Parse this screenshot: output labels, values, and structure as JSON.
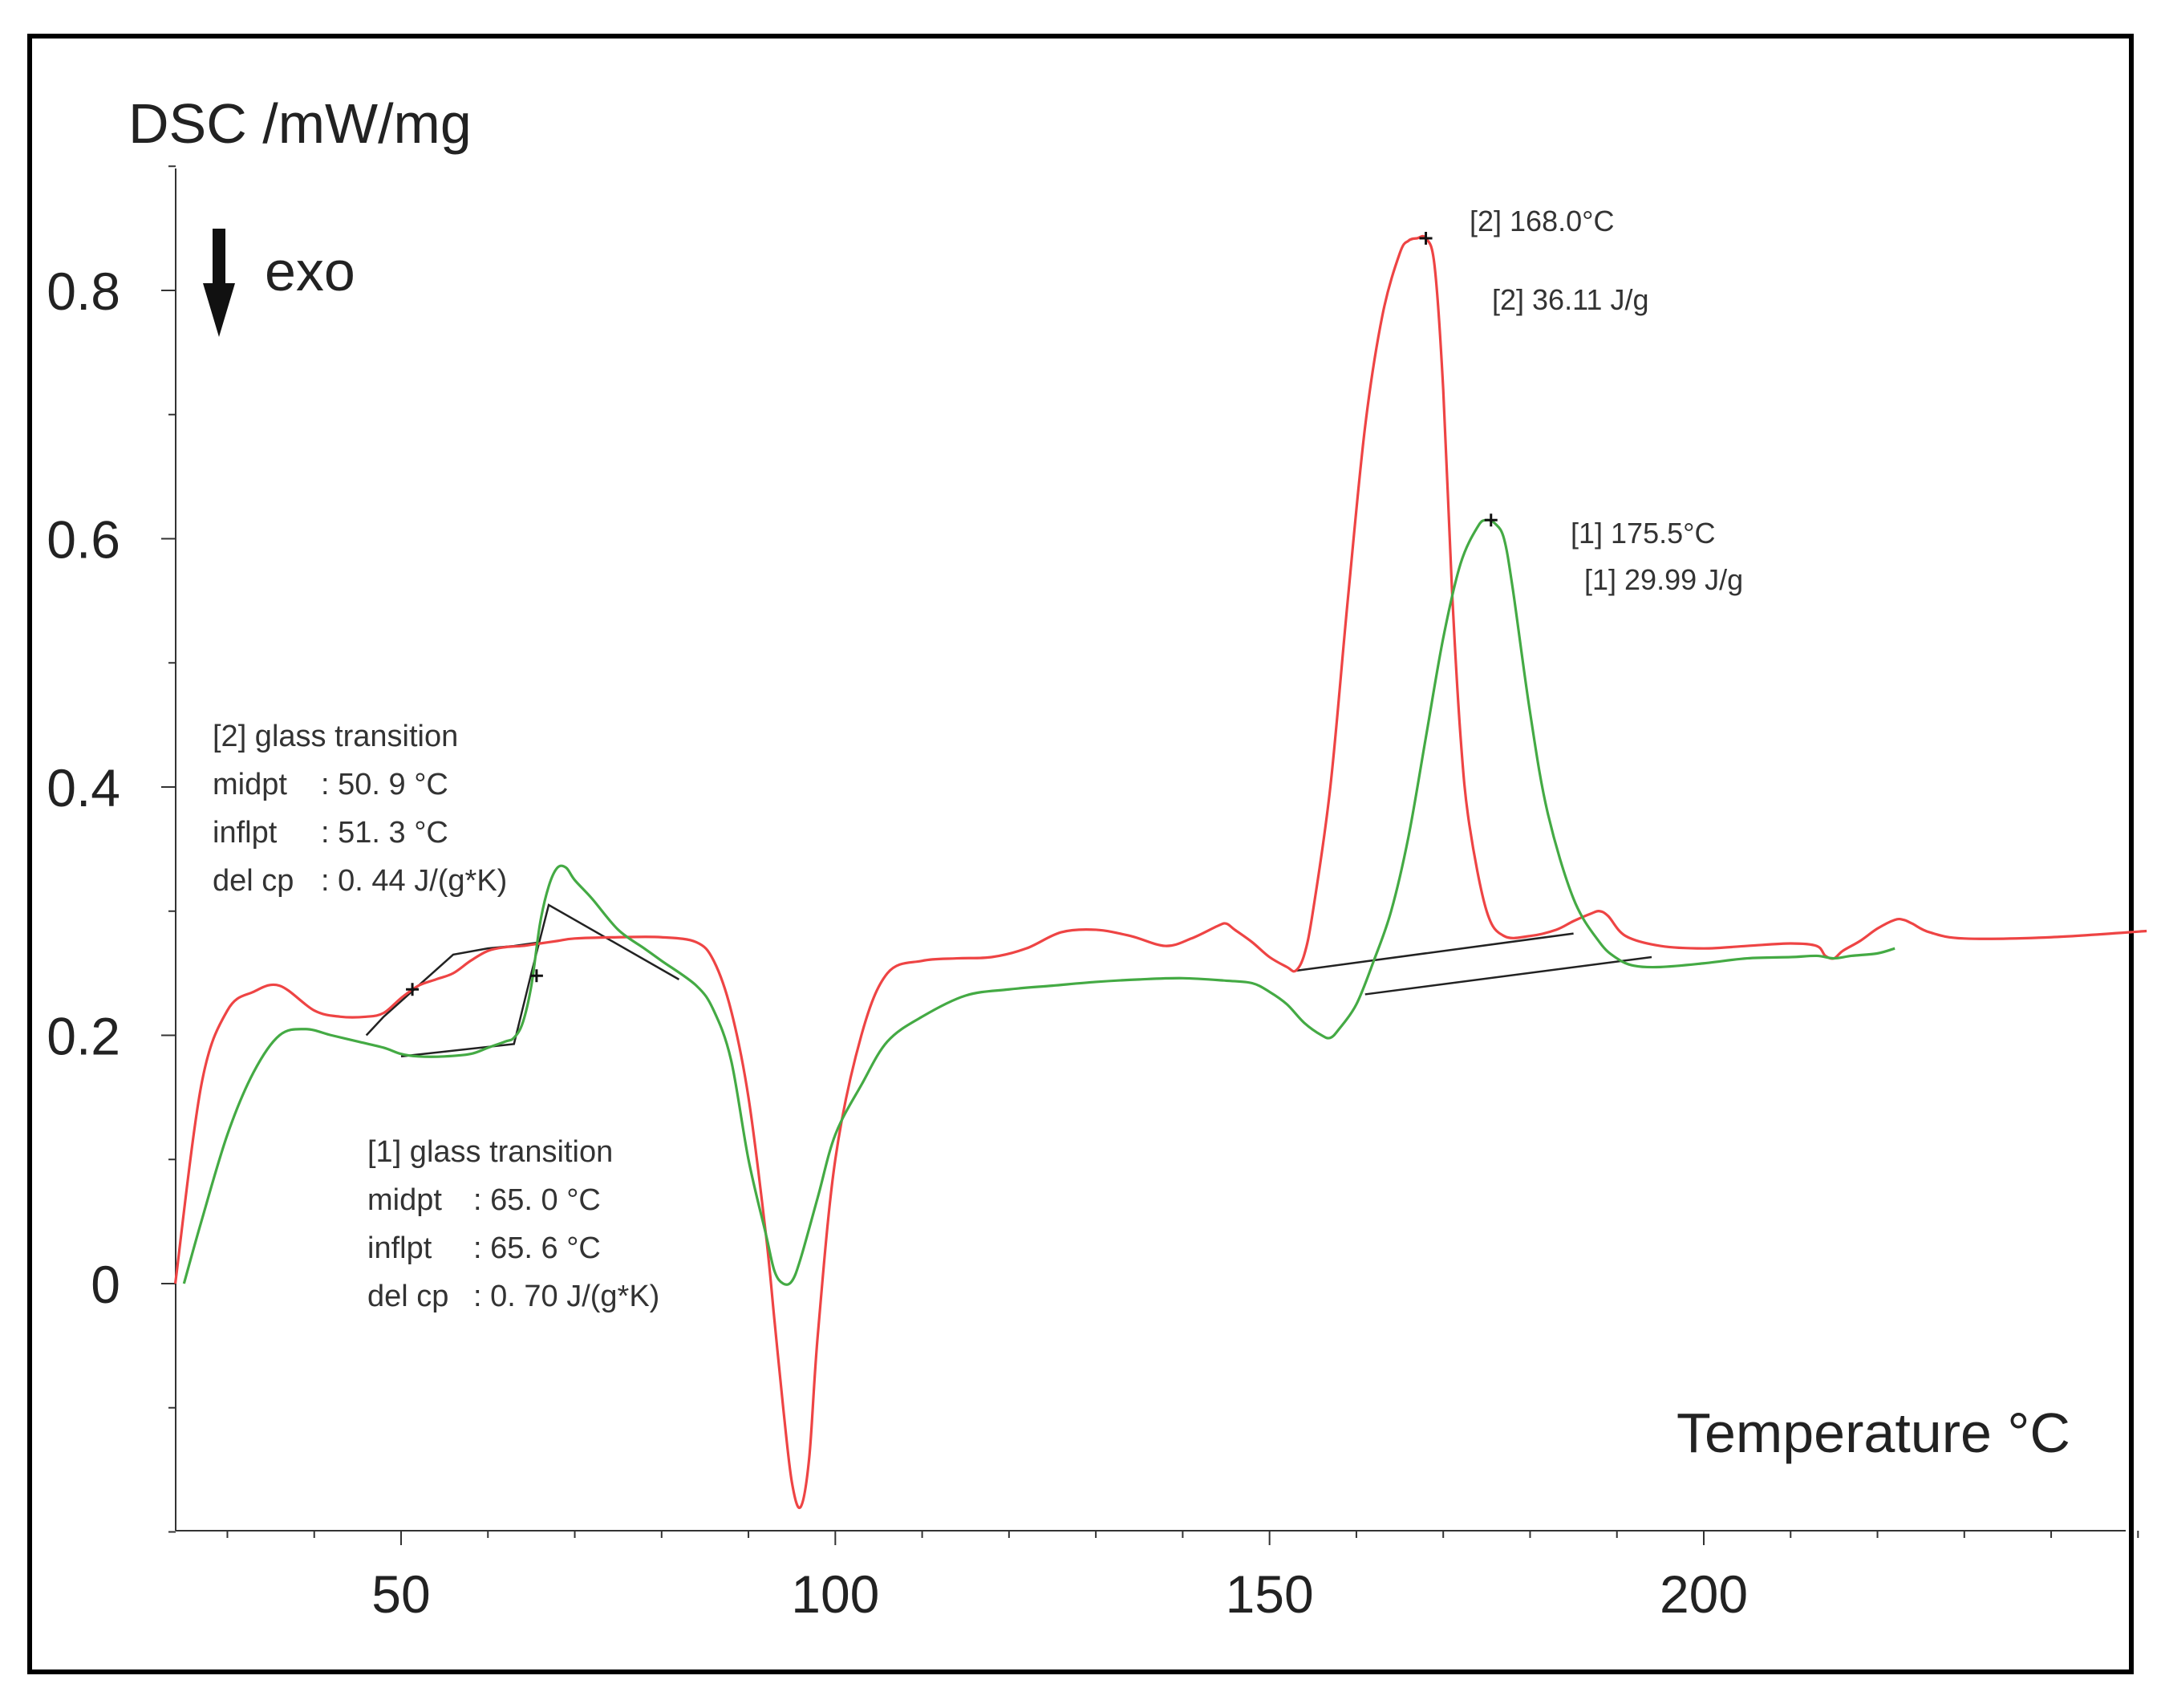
{
  "chart_data": {
    "type": "line",
    "ylabel": "DSC /mW/mg",
    "xlabel": "Temperature °C",
    "direction_label": "exo",
    "direction_icon": "down-arrow-icon",
    "xlim": [
      24,
      251
    ],
    "ylim": [
      -0.2,
      0.9
    ],
    "x_ticks": [
      50,
      100,
      150,
      200
    ],
    "y_ticks": [
      0,
      0.2,
      0.4,
      0.6,
      0.8
    ],
    "y_tick_labels": [
      "0",
      "0.2",
      "0.4",
      "0.6",
      "0.8"
    ],
    "x_minor_step": 10,
    "y_minor_step": 0.1,
    "grid": false,
    "series": [
      {
        "name": "[2]",
        "color": "#ee4444",
        "x": [
          24,
          27,
          30,
          33,
          36,
          40,
          43,
          46,
          48,
          50,
          52,
          54,
          56,
          58,
          60,
          62,
          64,
          66,
          68,
          70,
          75,
          80,
          84,
          86,
          88,
          90,
          92,
          93,
          94,
          95,
          96,
          97,
          98,
          100,
          103,
          106,
          110,
          114,
          118,
          122,
          126,
          130,
          134,
          138,
          141,
          144,
          145,
          146,
          148,
          150,
          152,
          153,
          154,
          155,
          157,
          159,
          161,
          163,
          165,
          166,
          167,
          168,
          169,
          170,
          171,
          172,
          173,
          175,
          177,
          180,
          183,
          185,
          187,
          188,
          189,
          191,
          195,
          200,
          205,
          210,
          213,
          214,
          215,
          216,
          218,
          220,
          222,
          223,
          224,
          226,
          230,
          240,
          251
        ],
        "y": [
          0,
          0.16,
          0.22,
          0.235,
          0.24,
          0.22,
          0.215,
          0.215,
          0.218,
          0.23,
          0.24,
          0.245,
          0.25,
          0.26,
          0.268,
          0.271,
          0.272,
          0.274,
          0.276,
          0.278,
          0.279,
          0.279,
          0.275,
          0.26,
          0.22,
          0.15,
          0.04,
          -0.03,
          -0.1,
          -0.16,
          -0.18,
          -0.14,
          -0.04,
          0.1,
          0.2,
          0.25,
          0.26,
          0.262,
          0.263,
          0.27,
          0.283,
          0.285,
          0.28,
          0.272,
          0.278,
          0.288,
          0.29,
          0.285,
          0.275,
          0.263,
          0.255,
          0.252,
          0.265,
          0.3,
          0.4,
          0.55,
          0.69,
          0.78,
          0.83,
          0.84,
          0.842,
          0.842,
          0.82,
          0.72,
          0.56,
          0.44,
          0.37,
          0.3,
          0.28,
          0.28,
          0.285,
          0.292,
          0.298,
          0.3,
          0.296,
          0.28,
          0.272,
          0.27,
          0.272,
          0.274,
          0.272,
          0.264,
          0.262,
          0.268,
          0.276,
          0.286,
          0.293,
          0.293,
          0.29,
          0.283,
          0.278,
          0.279,
          0.284
        ]
      },
      {
        "name": "[1]",
        "color": "#44aa44",
        "x": [
          25,
          27,
          30,
          33,
          36,
          39,
          42,
          45,
          48,
          50,
          52,
          55,
          58,
          60,
          62,
          63,
          64,
          65,
          66,
          67,
          68,
          69,
          70,
          72,
          75,
          78,
          80,
          84,
          86,
          88,
          90,
          92,
          93,
          94,
          95,
          96,
          98,
          100,
          103,
          106,
          110,
          115,
          120,
          125,
          130,
          135,
          140,
          145,
          148,
          150,
          152,
          154,
          156,
          157,
          158,
          160,
          162,
          164,
          166,
          168,
          170,
          172,
          174,
          175,
          176,
          177,
          178,
          180,
          182,
          185,
          188,
          190,
          192,
          195,
          200,
          205,
          210,
          213,
          215,
          217,
          220,
          222
        ],
        "y": [
          0,
          0.05,
          0.12,
          0.17,
          0.2,
          0.205,
          0.2,
          0.195,
          0.19,
          0.185,
          0.183,
          0.183,
          0.185,
          0.19,
          0.195,
          0.198,
          0.21,
          0.24,
          0.29,
          0.32,
          0.335,
          0.335,
          0.325,
          0.31,
          0.285,
          0.27,
          0.26,
          0.24,
          0.22,
          0.18,
          0.1,
          0.04,
          0.01,
          0,
          0.002,
          0.02,
          0.07,
          0.12,
          0.16,
          0.195,
          0.215,
          0.232,
          0.237,
          0.24,
          0.243,
          0.245,
          0.246,
          0.244,
          0.242,
          0.235,
          0.225,
          0.21,
          0.2,
          0.198,
          0.205,
          0.225,
          0.26,
          0.3,
          0.36,
          0.44,
          0.52,
          0.58,
          0.61,
          0.615,
          0.612,
          0.6,
          0.56,
          0.46,
          0.38,
          0.31,
          0.275,
          0.262,
          0.256,
          0.255,
          0.258,
          0.262,
          0.263,
          0.264,
          0.262,
          0.264,
          0.266,
          0.27
        ]
      }
    ],
    "construction_lines": [
      {
        "name": "[2] tangent",
        "x": [
          46,
          48,
          52,
          56,
          60,
          63,
          66
        ],
        "y": [
          0.2,
          0.215,
          0.24,
          0.265,
          0.27,
          0.272,
          0.275
        ]
      },
      {
        "name": "[1] tangent",
        "x": [
          50,
          63,
          65,
          67,
          82
        ],
        "y": [
          0.183,
          0.193,
          0.25,
          0.305,
          0.245
        ]
      },
      {
        "name": "[2] peak baseline",
        "x": [
          153,
          185
        ],
        "y": [
          0.252,
          0.282
        ]
      },
      {
        "name": "[1] peak baseline",
        "x": [
          161,
          194
        ],
        "y": [
          0.233,
          0.263
        ]
      }
    ],
    "markers": [
      {
        "x": 51.3,
        "y": 0.237
      },
      {
        "x": 65.6,
        "y": 0.248
      },
      {
        "x": 168,
        "y": 0.842
      },
      {
        "x": 175.5,
        "y": 0.615
      }
    ],
    "annotations": {
      "glass2": {
        "title": "[2] glass transition",
        "midpt_label": "midpt",
        "midpt_value": ":  50. 9 °C",
        "inflpt_label": "inflpt",
        "inflpt_value": ":  51. 3 °C",
        "delcp_label": "del cp",
        "delcp_value": ":    0. 44 J/(g*K)"
      },
      "glass1": {
        "title": "[1] glass transition",
        "midpt_label": "midpt",
        "midpt_value": ":  65. 0 °C",
        "inflpt_label": "inflpt",
        "inflpt_value": ":  65. 6 °C",
        "delcp_label": "del cp",
        "delcp_value": ":    0. 70 J/(g*K)"
      },
      "peak2_temp": "[2] 168.0°C",
      "peak2_enthalpy": "[2] 36.11 J/g",
      "peak1_temp": "[1] 175.5°C",
      "peak1_enthalpy": "[1] 29.99 J/g"
    }
  }
}
